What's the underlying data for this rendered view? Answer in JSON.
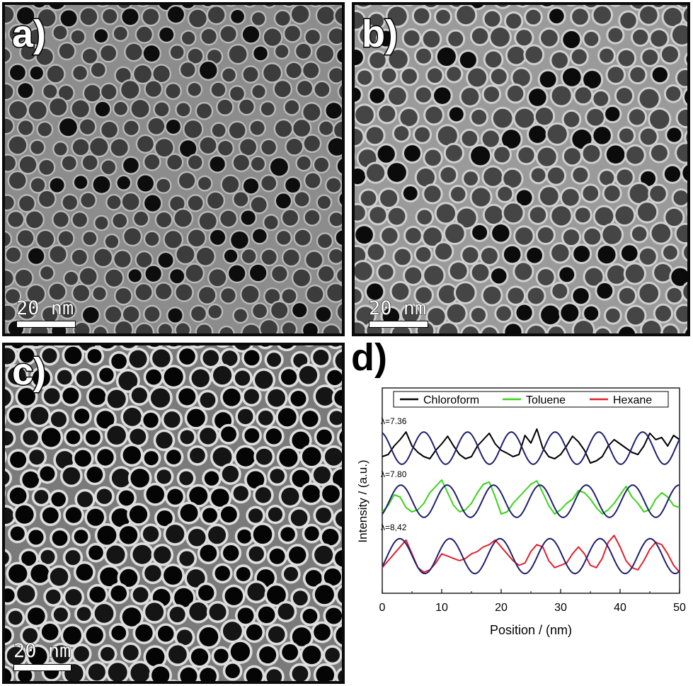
{
  "figure": {
    "panels": [
      {
        "label": "a)",
        "scale_text": "20 nm"
      },
      {
        "label": "b)",
        "scale_text": "20 nm"
      },
      {
        "label": "c)",
        "scale_text": "20 nm"
      },
      {
        "label": "d)"
      }
    ]
  },
  "chart_data": {
    "type": "line",
    "xlabel": "Position / (nm)",
    "ylabel": "Intensity / (a.u.)",
    "xlim": [
      0,
      50
    ],
    "xticks": [
      0,
      10,
      20,
      30,
      40,
      50
    ],
    "grid": false,
    "legend_placement": "top",
    "legend": [
      "Chloroform",
      "Toluene",
      "Hexane"
    ],
    "series": [
      {
        "name": "Chloroform",
        "color": "#000000",
        "lambda_label": "λ=7.36",
        "period": 7.36,
        "x": [
          0,
          1,
          2,
          3,
          4,
          5,
          6,
          7,
          8,
          9,
          10,
          11,
          12,
          13,
          14,
          15,
          16,
          17,
          18,
          19,
          20,
          21,
          22,
          23,
          24,
          25,
          26,
          27,
          28,
          29,
          30,
          31,
          32,
          33,
          34,
          35,
          36,
          37,
          38,
          39,
          40,
          41,
          42,
          43,
          44,
          45,
          46,
          47,
          48,
          49,
          50
        ],
        "y": [
          0.3,
          0.35,
          0.55,
          0.7,
          0.88,
          0.55,
          0.4,
          0.3,
          0.25,
          0.45,
          0.6,
          0.78,
          0.55,
          0.35,
          0.25,
          0.3,
          0.55,
          0.7,
          0.85,
          0.6,
          0.45,
          0.38,
          0.3,
          0.35,
          0.8,
          0.62,
          0.95,
          0.5,
          0.3,
          0.25,
          0.35,
          0.55,
          0.78,
          0.65,
          0.45,
          0.15,
          0.2,
          0.3,
          0.55,
          0.7,
          0.6,
          0.5,
          0.4,
          0.35,
          0.55,
          0.85,
          0.7,
          0.75,
          0.55,
          0.8,
          0.7
        ]
      },
      {
        "name": "Toluene",
        "color": "#39d41a",
        "lambda_label": "λ=7.80",
        "period": 7.8,
        "x": [
          0,
          1,
          2,
          3,
          4,
          5,
          6,
          7,
          8,
          9,
          10,
          11,
          12,
          13,
          14,
          15,
          16,
          17,
          18,
          19,
          20,
          21,
          22,
          23,
          24,
          25,
          26,
          27,
          28,
          29,
          30,
          31,
          32,
          33,
          34,
          35,
          36,
          37,
          38,
          39,
          40,
          41,
          42,
          43,
          44,
          45,
          46,
          47,
          48,
          49,
          50
        ],
        "y": [
          0.25,
          0.4,
          0.65,
          0.6,
          0.35,
          0.25,
          0.3,
          0.45,
          0.7,
          0.85,
          1.0,
          0.7,
          0.4,
          0.25,
          0.3,
          0.45,
          0.7,
          0.9,
          0.95,
          0.6,
          0.2,
          0.25,
          0.45,
          0.6,
          0.75,
          0.9,
          0.98,
          0.7,
          0.4,
          0.2,
          0.3,
          0.45,
          0.55,
          0.75,
          0.7,
          0.55,
          0.35,
          0.2,
          0.3,
          0.45,
          0.65,
          0.85,
          0.6,
          0.45,
          0.25,
          0.3,
          0.55,
          0.7,
          0.6,
          0.4,
          0.35
        ]
      },
      {
        "name": "Hexane",
        "color": "#e0202a",
        "lambda_label": "λ=8,42",
        "period": 8.42,
        "x": [
          0,
          1,
          2,
          3,
          4,
          5,
          6,
          7,
          8,
          9,
          10,
          11,
          12,
          13,
          14,
          15,
          16,
          17,
          18,
          19,
          20,
          21,
          22,
          23,
          24,
          25,
          26,
          27,
          28,
          29,
          30,
          31,
          32,
          33,
          34,
          35,
          36,
          37,
          38,
          39,
          40,
          41,
          42,
          43,
          44,
          45,
          46,
          47,
          48,
          49,
          50
        ],
        "y": [
          0.25,
          0.4,
          0.55,
          0.7,
          0.85,
          0.55,
          0.25,
          0.15,
          0.2,
          0.35,
          0.55,
          0.5,
          0.45,
          0.4,
          0.45,
          0.55,
          0.6,
          0.7,
          0.75,
          0.85,
          0.7,
          0.55,
          0.4,
          0.3,
          0.35,
          0.6,
          0.75,
          0.7,
          0.4,
          0.25,
          0.3,
          0.35,
          0.55,
          0.7,
          0.55,
          0.3,
          0.25,
          0.45,
          0.8,
          0.95,
          0.7,
          0.4,
          0.25,
          0.2,
          0.4,
          0.65,
          0.8,
          0.75,
          0.55,
          0.3,
          0.15
        ]
      }
    ]
  }
}
